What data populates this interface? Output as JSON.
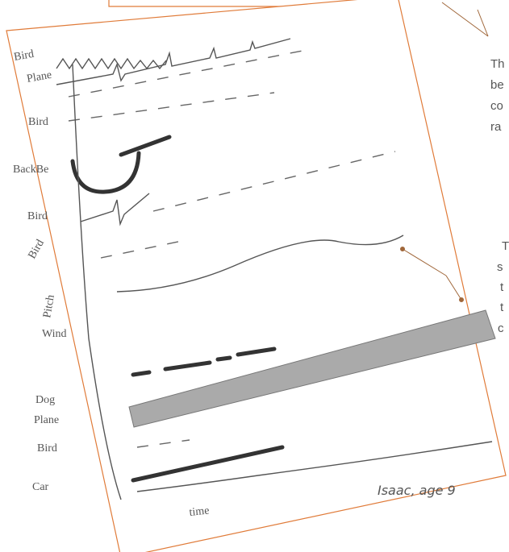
{
  "drawing": {
    "labels": [
      "Bird",
      "Plane",
      "Bird",
      "BackBe",
      "Bird",
      "Bird",
      "Wind",
      "Dog",
      "Plane",
      "Bird",
      "Car"
    ],
    "y_label": "Pitch",
    "x_label": "time"
  },
  "caption": "Isaac, age 9",
  "notes": {
    "top": [
      "Th",
      "be",
      "co",
      "ra"
    ],
    "middle": [
      "T",
      "s",
      "t",
      "t",
      "c"
    ]
  }
}
